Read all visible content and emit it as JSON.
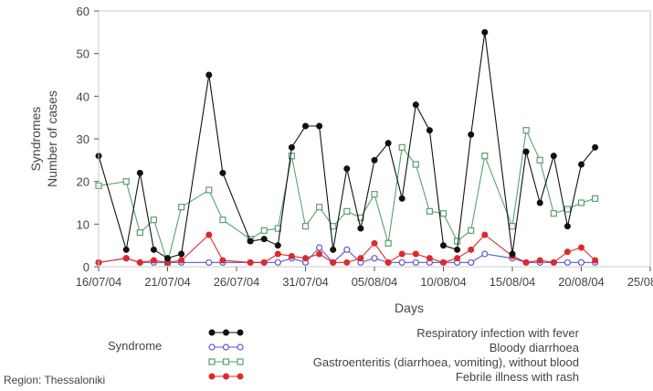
{
  "chart_data": {
    "type": "line",
    "title": "",
    "xlabel": "Days",
    "ylabel_lines": [
      "Syndromes",
      "Number of cases"
    ],
    "ylim": [
      0,
      60
    ],
    "yticks": [
      0,
      10,
      20,
      30,
      40,
      50,
      60
    ],
    "x_range": [
      "2004-07-16",
      "2004-08-25"
    ],
    "xticks": [
      {
        "date": "2004-07-16",
        "label": "16/07/04"
      },
      {
        "date": "2004-07-21",
        "label": "21/07/04"
      },
      {
        "date": "2004-07-26",
        "label": "26/07/04"
      },
      {
        "date": "2004-07-31",
        "label": "31/07/04"
      },
      {
        "date": "2004-08-05",
        "label": "05/08/04"
      },
      {
        "date": "2004-08-10",
        "label": "10/08/04"
      },
      {
        "date": "2004-08-15",
        "label": "15/08/04"
      },
      {
        "date": "2004-08-20",
        "label": "20/08/04"
      },
      {
        "date": "2004-08-25",
        "label": "25/08/04"
      }
    ],
    "grid": false,
    "legend_title": "Syndrome",
    "legend_position": "bottom",
    "series": [
      {
        "name": "Respiratory infection with fever",
        "color": "#111111",
        "marker": "filled-circle",
        "points": [
          [
            "2004-07-16",
            26
          ],
          [
            "2004-07-18",
            4
          ],
          [
            "2004-07-19",
            22
          ],
          [
            "2004-07-20",
            4
          ],
          [
            "2004-07-21",
            2
          ],
          [
            "2004-07-22",
            3
          ],
          [
            "2004-07-24",
            45
          ],
          [
            "2004-07-25",
            22
          ],
          [
            "2004-07-27",
            6
          ],
          [
            "2004-07-28",
            6.5
          ],
          [
            "2004-07-29",
            5
          ],
          [
            "2004-07-30",
            28
          ],
          [
            "2004-07-31",
            33
          ],
          [
            "2004-08-01",
            33
          ],
          [
            "2004-08-02",
            4
          ],
          [
            "2004-08-03",
            23
          ],
          [
            "2004-08-04",
            9
          ],
          [
            "2004-08-05",
            25
          ],
          [
            "2004-08-06",
            29
          ],
          [
            "2004-08-07",
            16
          ],
          [
            "2004-08-08",
            38
          ],
          [
            "2004-08-09",
            32
          ],
          [
            "2004-08-10",
            5
          ],
          [
            "2004-08-11",
            4
          ],
          [
            "2004-08-12",
            31
          ],
          [
            "2004-08-13",
            55
          ],
          [
            "2004-08-15",
            3
          ],
          [
            "2004-08-16",
            27
          ],
          [
            "2004-08-17",
            15
          ],
          [
            "2004-08-18",
            26
          ],
          [
            "2004-08-19",
            9.5
          ],
          [
            "2004-08-20",
            24
          ],
          [
            "2004-08-21",
            28
          ]
        ]
      },
      {
        "name": "Bloody diarrhoea",
        "color": "#5a5ac8",
        "marker": "open-circle",
        "points": [
          [
            "2004-07-16",
            1
          ],
          [
            "2004-07-18",
            2
          ],
          [
            "2004-07-19",
            1
          ],
          [
            "2004-07-20",
            1
          ],
          [
            "2004-07-21",
            1
          ],
          [
            "2004-07-22",
            1
          ],
          [
            "2004-07-24",
            1
          ],
          [
            "2004-07-25",
            1
          ],
          [
            "2004-07-27",
            1
          ],
          [
            "2004-07-28",
            1
          ],
          [
            "2004-07-29",
            1
          ],
          [
            "2004-07-30",
            2
          ],
          [
            "2004-07-31",
            1
          ],
          [
            "2004-08-01",
            4.5
          ],
          [
            "2004-08-02",
            1
          ],
          [
            "2004-08-03",
            4
          ],
          [
            "2004-08-04",
            1
          ],
          [
            "2004-08-05",
            2
          ],
          [
            "2004-08-06",
            1
          ],
          [
            "2004-08-07",
            1
          ],
          [
            "2004-08-08",
            1
          ],
          [
            "2004-08-09",
            1
          ],
          [
            "2004-08-10",
            1
          ],
          [
            "2004-08-11",
            1
          ],
          [
            "2004-08-12",
            1
          ],
          [
            "2004-08-13",
            3
          ],
          [
            "2004-08-15",
            2
          ],
          [
            "2004-08-16",
            1
          ],
          [
            "2004-08-17",
            1
          ],
          [
            "2004-08-18",
            1
          ],
          [
            "2004-08-19",
            1
          ],
          [
            "2004-08-20",
            1
          ],
          [
            "2004-08-21",
            1
          ]
        ]
      },
      {
        "name": "Gastroenteritis (diarrhoea, vomiting), without blood",
        "color": "#5aa06e",
        "marker": "open-square",
        "points": [
          [
            "2004-07-16",
            19
          ],
          [
            "2004-07-18",
            20
          ],
          [
            "2004-07-19",
            8
          ],
          [
            "2004-07-20",
            11
          ],
          [
            "2004-07-21",
            1
          ],
          [
            "2004-07-22",
            14
          ],
          [
            "2004-07-24",
            18
          ],
          [
            "2004-07-25",
            11
          ],
          [
            "2004-07-27",
            6.5
          ],
          [
            "2004-07-28",
            8.5
          ],
          [
            "2004-07-29",
            9
          ],
          [
            "2004-07-30",
            26
          ],
          [
            "2004-07-31",
            9.5
          ],
          [
            "2004-08-01",
            14
          ],
          [
            "2004-08-02",
            9.5
          ],
          [
            "2004-08-03",
            13
          ],
          [
            "2004-08-04",
            11.5
          ],
          [
            "2004-08-05",
            17
          ],
          [
            "2004-08-06",
            5.5
          ],
          [
            "2004-08-07",
            28
          ],
          [
            "2004-08-08",
            24
          ],
          [
            "2004-08-09",
            13
          ],
          [
            "2004-08-10",
            12.5
          ],
          [
            "2004-08-11",
            6
          ],
          [
            "2004-08-12",
            8.5
          ],
          [
            "2004-08-13",
            26
          ],
          [
            "2004-08-15",
            9.5
          ],
          [
            "2004-08-16",
            32
          ],
          [
            "2004-08-17",
            25
          ],
          [
            "2004-08-18",
            12.5
          ],
          [
            "2004-08-19",
            13.5
          ],
          [
            "2004-08-20",
            15
          ],
          [
            "2004-08-21",
            16
          ]
        ]
      },
      {
        "name": "Febrile illness with rash",
        "color": "#dd2a2a",
        "marker": "filled-circle",
        "points": [
          [
            "2004-07-16",
            1
          ],
          [
            "2004-07-18",
            2
          ],
          [
            "2004-07-19",
            1
          ],
          [
            "2004-07-20",
            1.5
          ],
          [
            "2004-07-21",
            1
          ],
          [
            "2004-07-22",
            1.5
          ],
          [
            "2004-07-24",
            7.5
          ],
          [
            "2004-07-25",
            1.5
          ],
          [
            "2004-07-27",
            1
          ],
          [
            "2004-07-28",
            1
          ],
          [
            "2004-07-29",
            3
          ],
          [
            "2004-07-30",
            2.5
          ],
          [
            "2004-07-31",
            2
          ],
          [
            "2004-08-01",
            3
          ],
          [
            "2004-08-02",
            1
          ],
          [
            "2004-08-03",
            1
          ],
          [
            "2004-08-04",
            2
          ],
          [
            "2004-08-05",
            5.5
          ],
          [
            "2004-08-06",
            1
          ],
          [
            "2004-08-07",
            3
          ],
          [
            "2004-08-08",
            3
          ],
          [
            "2004-08-09",
            2
          ],
          [
            "2004-08-10",
            1
          ],
          [
            "2004-08-11",
            2
          ],
          [
            "2004-08-12",
            4
          ],
          [
            "2004-08-13",
            7.5
          ],
          [
            "2004-08-15",
            2.5
          ],
          [
            "2004-08-16",
            1
          ],
          [
            "2004-08-17",
            1.5
          ],
          [
            "2004-08-18",
            1
          ],
          [
            "2004-08-19",
            3.5
          ],
          [
            "2004-08-20",
            4.5
          ],
          [
            "2004-08-21",
            1.5
          ]
        ]
      }
    ],
    "footnote": "Region: Thessaloniki"
  }
}
